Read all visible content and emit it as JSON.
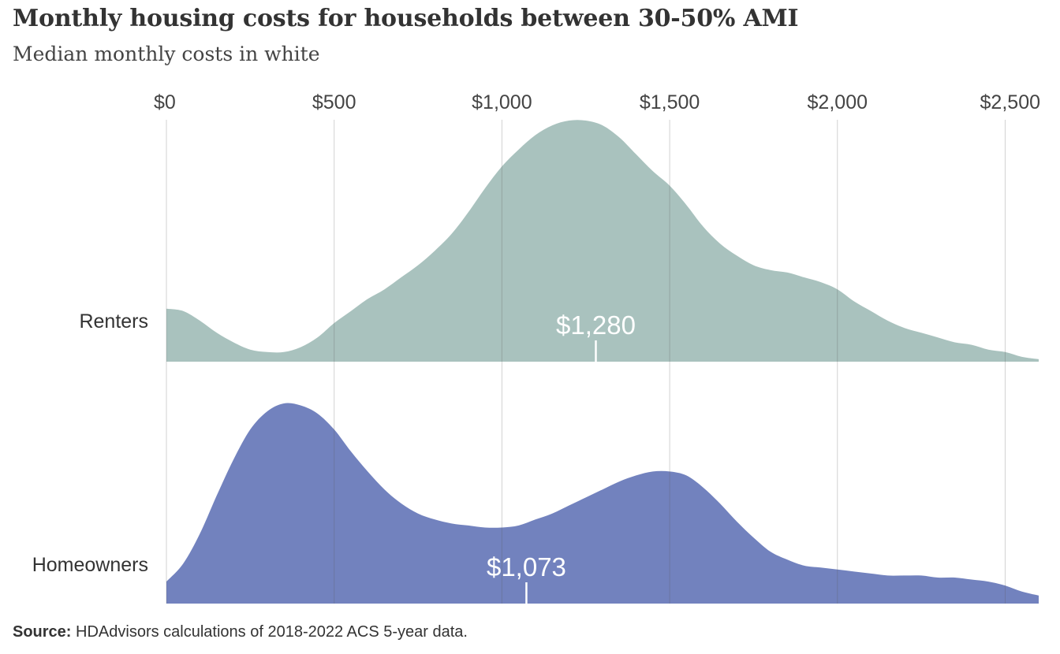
{
  "header": {
    "title": "Monthly housing costs for households between 30-50% AMI",
    "subtitle": "Median monthly costs in white"
  },
  "footer": {
    "source_label": "Source:",
    "source_text": " HDAdvisors  calculations of 2018-2022  ACS 5-year data."
  },
  "chart_data": {
    "type": "area",
    "subtype": "ridgeline density",
    "x_ticks": [
      0,
      500,
      1000,
      1500,
      2000,
      2500
    ],
    "x_tick_labels": [
      "$0",
      "$500",
      "$1,000",
      "$1,500",
      "$2,000",
      "$2,500"
    ],
    "xlim": [
      0,
      2600
    ],
    "x_axis_position": "top",
    "grid": "vertical",
    "series": [
      {
        "name": "Renters",
        "color": "#a9c2be",
        "median": 1280,
        "median_label": "$1,280",
        "x": [
          0,
          50,
          100,
          150,
          200,
          250,
          300,
          350,
          400,
          450,
          500,
          550,
          600,
          650,
          700,
          750,
          800,
          850,
          900,
          950,
          1000,
          1050,
          1100,
          1150,
          1200,
          1250,
          1300,
          1350,
          1400,
          1450,
          1500,
          1550,
          1600,
          1650,
          1700,
          1750,
          1800,
          1850,
          1900,
          1950,
          2000,
          2050,
          2100,
          2150,
          2200,
          2250,
          2300,
          2350,
          2400,
          2450,
          2500,
          2550,
          2600
        ],
        "density": [
          0.22,
          0.21,
          0.17,
          0.12,
          0.08,
          0.05,
          0.04,
          0.04,
          0.06,
          0.1,
          0.16,
          0.21,
          0.26,
          0.3,
          0.35,
          0.4,
          0.46,
          0.53,
          0.62,
          0.72,
          0.81,
          0.88,
          0.94,
          0.98,
          1.0,
          1.0,
          0.98,
          0.93,
          0.86,
          0.79,
          0.73,
          0.65,
          0.56,
          0.49,
          0.44,
          0.4,
          0.38,
          0.37,
          0.35,
          0.33,
          0.3,
          0.25,
          0.21,
          0.17,
          0.14,
          0.12,
          0.1,
          0.08,
          0.07,
          0.05,
          0.04,
          0.02,
          0.01
        ]
      },
      {
        "name": "Homeowners",
        "color": "#7282be",
        "median": 1073,
        "median_label": "$1,073",
        "x": [
          0,
          50,
          100,
          150,
          200,
          250,
          300,
          350,
          400,
          450,
          500,
          550,
          600,
          650,
          700,
          750,
          800,
          850,
          900,
          950,
          1000,
          1050,
          1100,
          1150,
          1200,
          1250,
          1300,
          1350,
          1400,
          1450,
          1500,
          1550,
          1600,
          1650,
          1700,
          1750,
          1800,
          1850,
          1900,
          1950,
          2000,
          2050,
          2100,
          2150,
          2200,
          2250,
          2300,
          2350,
          2400,
          2450,
          2500,
          2550,
          2600
        ],
        "density": [
          0.11,
          0.2,
          0.35,
          0.54,
          0.72,
          0.87,
          0.96,
          1.0,
          0.99,
          0.95,
          0.87,
          0.76,
          0.66,
          0.57,
          0.5,
          0.45,
          0.42,
          0.4,
          0.39,
          0.38,
          0.38,
          0.39,
          0.42,
          0.45,
          0.49,
          0.53,
          0.57,
          0.61,
          0.64,
          0.66,
          0.66,
          0.64,
          0.58,
          0.5,
          0.41,
          0.33,
          0.26,
          0.22,
          0.19,
          0.18,
          0.17,
          0.16,
          0.15,
          0.14,
          0.14,
          0.14,
          0.13,
          0.13,
          0.12,
          0.11,
          0.09,
          0.06,
          0.04
        ]
      }
    ]
  }
}
